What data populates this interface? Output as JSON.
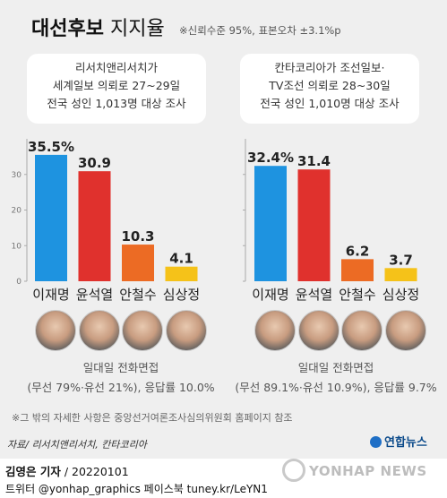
{
  "header": {
    "title_bold": "대선후보",
    "title_rest": "지지율",
    "confidence": "※신뢰수준 95%, 표본오차 ±3.1%p"
  },
  "chart_data": [
    {
      "type": "bar",
      "source_lines": [
        "리서치앤리서치가",
        "세계일보 의뢰로 27~29일",
        "전국 성인 1,013명 대상 조사"
      ],
      "categories": [
        "이재명",
        "윤석열",
        "안철수",
        "심상정"
      ],
      "values": [
        35.5,
        30.9,
        10.3,
        4.1
      ],
      "value_labels": [
        "35.5%",
        "30.9",
        "10.3",
        "4.1"
      ],
      "colors": [
        "#1e93e0",
        "#e0312d",
        "#ec6b24",
        "#f5c219"
      ],
      "yticks": [
        0,
        10,
        20,
        30
      ],
      "ylim": [
        0,
        40
      ],
      "grid": false,
      "method_lines": [
        "일대일 전화면접",
        "(무선 79%·유선 21%), 응답률 10.0%"
      ]
    },
    {
      "type": "bar",
      "source_lines": [
        "칸타코리아가 조선일보·",
        "TV조선 의뢰로 28~30일",
        "전국 성인 1,010명 대상 조사"
      ],
      "categories": [
        "이재명",
        "윤석열",
        "안철수",
        "심상정"
      ],
      "values": [
        32.4,
        31.4,
        6.2,
        3.7
      ],
      "value_labels": [
        "32.4%",
        "31.4",
        "6.2",
        "3.7"
      ],
      "colors": [
        "#1e93e0",
        "#e0312d",
        "#ec6b24",
        "#f5c219"
      ],
      "yticks": [
        0,
        10,
        20,
        30
      ],
      "ylim": [
        0,
        40
      ],
      "grid": false,
      "method_lines": [
        "일대일 전화면접",
        "(무선 89.1%·유선 10.9%), 응답률 9.7%"
      ]
    }
  ],
  "footer": {
    "note": "※그 밖의 자세한 사항은 중앙선거여론조사심의위원회 홈페이지 참조",
    "source": "자료/ 리서치앤리서치, 칸타코리아",
    "logo": "연합뉴스",
    "byline_name": "김영은 기자",
    "byline_date": " / 20220101",
    "social": "트위터 @yonhap_graphics  페이스북 tuney.kr/LeYN1",
    "watermark": "YONHAP NEWS"
  }
}
